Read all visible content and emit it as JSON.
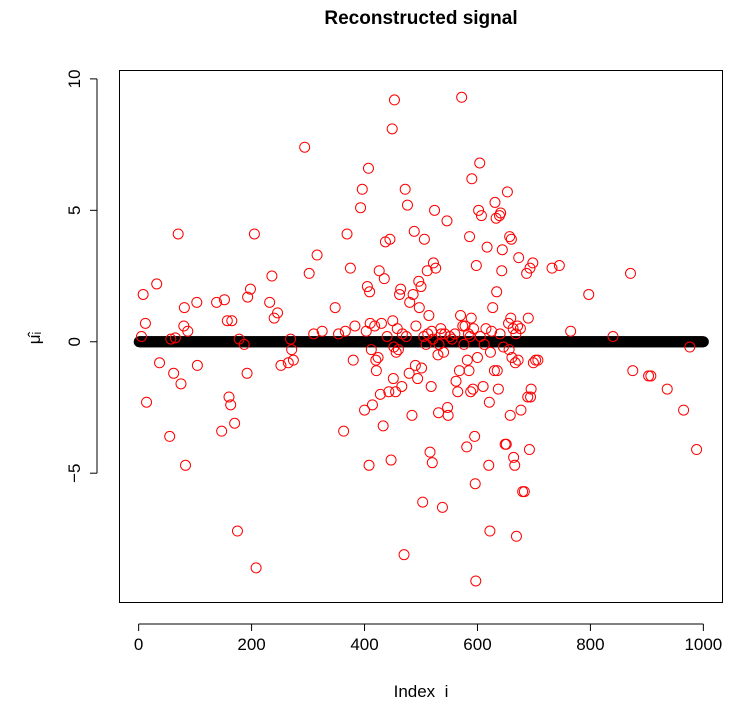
{
  "chart_data": {
    "type": "scatter",
    "title": "Reconstructed signal",
    "xlabel": "Index  i",
    "ylabel": "μ̂ᵢ",
    "xlim": [
      -33,
      1033
    ],
    "ylim": [
      -9.9,
      10.3
    ],
    "x_ticks": [
      0,
      200,
      400,
      600,
      800,
      1000
    ],
    "y_ticks": [
      -5,
      0,
      5,
      10
    ],
    "x_tick_labels": [
      "0",
      "200",
      "400",
      "600",
      "800",
      "1000"
    ],
    "y_tick_labels": [
      "−5",
      "0",
      "5",
      "10"
    ],
    "grid": false,
    "legend": "none",
    "series": [
      {
        "color": "#000000",
        "marker": "open-circle",
        "description_of_values": "y = 0 at every index i = 1..1000",
        "x_start": 1,
        "x_end": 1000,
        "y_constant": 0
      },
      {
        "color": "#ff0000",
        "marker": "open-circle",
        "points": [
          [
            5,
            0.2
          ],
          [
            8,
            1.8
          ],
          [
            12,
            0.7
          ],
          [
            14,
            -2.3
          ],
          [
            32,
            2.2
          ],
          [
            37,
            -0.8
          ],
          [
            55,
            -3.6
          ],
          [
            57,
            0.1
          ],
          [
            62,
            -1.2
          ],
          [
            65,
            0.15
          ],
          [
            70,
            4.1
          ],
          [
            75,
            -1.6
          ],
          [
            80,
            0.6
          ],
          [
            81,
            1.3
          ],
          [
            83,
            -4.7
          ],
          [
            87,
            0.4
          ],
          [
            103,
            1.5
          ],
          [
            104,
            -0.9
          ],
          [
            138,
            1.5
          ],
          [
            147,
            -3.4
          ],
          [
            152,
            1.6
          ],
          [
            157,
            0.8
          ],
          [
            160,
            -2.1
          ],
          [
            163,
            -2.4
          ],
          [
            165,
            0.8
          ],
          [
            170,
            -3.1
          ],
          [
            175,
            -7.2
          ],
          [
            178,
            0.1
          ],
          [
            187,
            -0.1
          ],
          [
            192,
            -1.2
          ],
          [
            193,
            1.7
          ],
          [
            198,
            2.0
          ],
          [
            205,
            4.1
          ],
          [
            208,
            -8.6
          ],
          [
            232,
            1.5
          ],
          [
            236,
            2.5
          ],
          [
            240,
            0.9
          ],
          [
            246,
            1.1
          ],
          [
            252,
            -0.9
          ],
          [
            265,
            -0.8
          ],
          [
            269,
            0.1
          ],
          [
            271,
            -0.3
          ],
          [
            274,
            -0.7
          ],
          [
            294,
            7.4
          ],
          [
            302,
            2.6
          ],
          [
            310,
            0.3
          ],
          [
            316,
            3.3
          ],
          [
            325,
            0.4
          ],
          [
            348,
            1.3
          ],
          [
            354,
            0.3
          ],
          [
            363,
            -3.4
          ],
          [
            366,
            0.4
          ],
          [
            369,
            4.1
          ],
          [
            375,
            2.8
          ],
          [
            380,
            -0.7
          ],
          [
            383,
            0.6
          ],
          [
            393,
            5.1
          ],
          [
            396,
            5.8
          ],
          [
            400,
            -2.6
          ],
          [
            403,
            0.4
          ],
          [
            405,
            2.1
          ],
          [
            407,
            6.6
          ],
          [
            408,
            -4.7
          ],
          [
            409,
            1.9
          ],
          [
            410,
            0.7
          ],
          [
            412,
            -0.3
          ],
          [
            414,
            -2.4
          ],
          [
            418,
            0.6
          ],
          [
            420,
            -0.7
          ],
          [
            421,
            -1.1
          ],
          [
            424,
            -0.6
          ],
          [
            426,
            2.7
          ],
          [
            428,
            -2.0
          ],
          [
            430,
            0.7
          ],
          [
            433,
            -3.2
          ],
          [
            435,
            2.4
          ],
          [
            437,
            3.8
          ],
          [
            440,
            0.2
          ],
          [
            443,
            -1.9
          ],
          [
            445,
            3.9
          ],
          [
            447,
            -4.5
          ],
          [
            449,
            8.1
          ],
          [
            450,
            0.8
          ],
          [
            451,
            -1.4
          ],
          [
            452,
            -0.2
          ],
          [
            453,
            9.2
          ],
          [
            455,
            -1.9
          ],
          [
            456,
            -0.4
          ],
          [
            458,
            0.5
          ],
          [
            460,
            -0.3
          ],
          [
            462,
            1.8
          ],
          [
            464,
            2.0
          ],
          [
            466,
            -1.7
          ],
          [
            467,
            0.3
          ],
          [
            470,
            -8.1
          ],
          [
            472,
            5.8
          ],
          [
            474,
            0.2
          ],
          [
            476,
            5.2
          ],
          [
            479,
            -1.2
          ],
          [
            480,
            1.5
          ],
          [
            484,
            -2.8
          ],
          [
            486,
            1.8
          ],
          [
            488,
            4.2
          ],
          [
            490,
            -0.9
          ],
          [
            491,
            0.6
          ],
          [
            494,
            -1.4
          ],
          [
            496,
            2.3
          ],
          [
            497,
            1.3
          ],
          [
            500,
            2.1
          ],
          [
            501,
            -1.0
          ],
          [
            503,
            -6.1
          ],
          [
            505,
            0.2
          ],
          [
            506,
            3.9
          ],
          [
            509,
            -0.1
          ],
          [
            511,
            2.7
          ],
          [
            512,
            0.3
          ],
          [
            514,
            1.0
          ],
          [
            516,
            -4.2
          ],
          [
            518,
            -1.7
          ],
          [
            519,
            0.4
          ],
          [
            520,
            -4.6
          ],
          [
            521,
            0.1
          ],
          [
            522,
            3.0
          ],
          [
            524,
            5.0
          ],
          [
            526,
            2.8
          ],
          [
            530,
            -0.5
          ],
          [
            531,
            -2.7
          ],
          [
            532,
            -0.1
          ],
          [
            535,
            0.5
          ],
          [
            536,
            0.3
          ],
          [
            538,
            -6.3
          ],
          [
            540,
            -0.4
          ],
          [
            542,
            0.3
          ],
          [
            546,
            4.6
          ],
          [
            547,
            -2.5
          ],
          [
            548,
            -2.8
          ],
          [
            551,
            0.2
          ],
          [
            555,
            0.1
          ],
          [
            560,
            0.3
          ],
          [
            562,
            -1.5
          ],
          [
            565,
            -1.9
          ],
          [
            568,
            -1.1
          ],
          [
            570,
            1.0
          ],
          [
            572,
            9.3
          ],
          [
            574,
            0.6
          ],
          [
            576,
            -0.1
          ],
          [
            578,
            0.6
          ],
          [
            581,
            -4.0
          ],
          [
            582,
            -0.7
          ],
          [
            584,
            0.3
          ],
          [
            585,
            -1.1
          ],
          [
            586,
            4.0
          ],
          [
            587,
            0.2
          ],
          [
            588,
            -1.9
          ],
          [
            589,
            0.9
          ],
          [
            590,
            6.2
          ],
          [
            592,
            -1.8
          ],
          [
            593,
            0.5
          ],
          [
            595,
            -3.6
          ],
          [
            596,
            -5.4
          ],
          [
            597,
            -9.1
          ],
          [
            598,
            2.9
          ],
          [
            600,
            -0.6
          ],
          [
            602,
            5.0
          ],
          [
            604,
            6.8
          ],
          [
            605,
            0.2
          ],
          [
            607,
            4.8
          ],
          [
            610,
            -1.7
          ],
          [
            612,
            -0.1
          ],
          [
            615,
            0.5
          ],
          [
            617,
            3.6
          ],
          [
            620,
            -4.7
          ],
          [
            621,
            -2.3
          ],
          [
            622,
            -7.2
          ],
          [
            623,
            -0.4
          ],
          [
            625,
            0.4
          ],
          [
            627,
            1.3
          ],
          [
            630,
            -1.1
          ],
          [
            631,
            5.3
          ],
          [
            633,
            4.7
          ],
          [
            634,
            1.9
          ],
          [
            635,
            -1.1
          ],
          [
            637,
            -1.8
          ],
          [
            639,
            4.8
          ],
          [
            640,
            0.3
          ],
          [
            641,
            4.9
          ],
          [
            643,
            2.7
          ],
          [
            644,
            3.5
          ],
          [
            646,
            -0.2
          ],
          [
            649,
            -3.9
          ],
          [
            651,
            -3.9
          ],
          [
            653,
            5.7
          ],
          [
            655,
            0.7
          ],
          [
            656,
            -0.3
          ],
          [
            657,
            4.0
          ],
          [
            658,
            -2.8
          ],
          [
            659,
            0.9
          ],
          [
            660,
            3.9
          ],
          [
            661,
            -0.6
          ],
          [
            663,
            0.5
          ],
          [
            664,
            -4.4
          ],
          [
            666,
            -4.7
          ],
          [
            667,
            -0.8
          ],
          [
            668,
            0.3
          ],
          [
            669,
            -7.4
          ],
          [
            671,
            0.6
          ],
          [
            672,
            -0.7
          ],
          [
            673,
            3.2
          ],
          [
            676,
            0.5
          ],
          [
            677,
            -2.6
          ],
          [
            680,
            -5.7
          ],
          [
            683,
            -5.7
          ],
          [
            687,
            2.6
          ],
          [
            689,
            -2.1
          ],
          [
            690,
            0.9
          ],
          [
            692,
            -4.1
          ],
          [
            693,
            2.8
          ],
          [
            694,
            -2.1
          ],
          [
            695,
            -1.8
          ],
          [
            698,
            3.0
          ],
          [
            699,
            -0.8
          ],
          [
            703,
            -0.7
          ],
          [
            707,
            -0.7
          ],
          [
            732,
            2.8
          ],
          [
            745,
            2.9
          ],
          [
            765,
            0.4
          ],
          [
            797,
            1.8
          ],
          [
            840,
            0.2
          ],
          [
            871,
            2.6
          ],
          [
            875,
            -1.1
          ],
          [
            903,
            -1.3
          ],
          [
            907,
            -1.3
          ],
          [
            936,
            -1.8
          ],
          [
            965,
            -2.6
          ],
          [
            976,
            -0.2
          ],
          [
            988,
            -4.1
          ]
        ]
      }
    ]
  }
}
